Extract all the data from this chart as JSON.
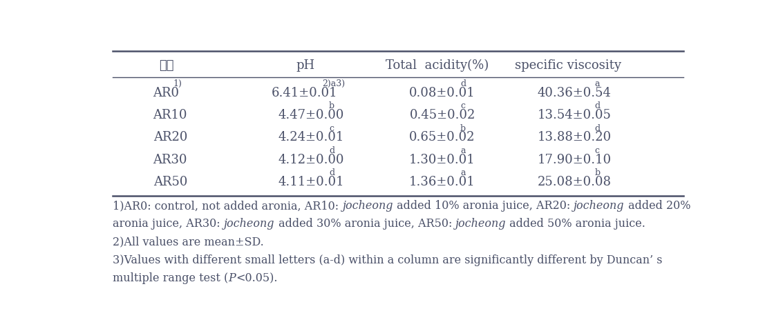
{
  "headers": [
    "시료",
    "pH",
    "Total  acidity(%)",
    "specific viscosity"
  ],
  "rows": [
    {
      "sample": "AR0",
      "sample_sup": "1)",
      "ph": "6.41±0.01",
      "ph_sup": "2)a3)",
      "acidity": "0.08±0.01",
      "acidity_sup": "d",
      "viscosity": "40.36±0.54",
      "viscosity_sup": "a"
    },
    {
      "sample": "AR10",
      "sample_sup": "",
      "ph": "4.47±0.00",
      "ph_sup": "b",
      "acidity": "0.45±0.02",
      "acidity_sup": "c",
      "viscosity": "13.54±0.05",
      "viscosity_sup": "d"
    },
    {
      "sample": "AR20",
      "sample_sup": "",
      "ph": "4.24±0.01",
      "ph_sup": "c",
      "acidity": "0.65±0.02",
      "acidity_sup": "b",
      "viscosity": "13.88±0.20",
      "viscosity_sup": "d"
    },
    {
      "sample": "AR30",
      "sample_sup": "",
      "ph": "4.12±0.00",
      "ph_sup": "d",
      "acidity": "1.30±0.01",
      "acidity_sup": "a",
      "viscosity": "17.90±0.10",
      "viscosity_sup": "c"
    },
    {
      "sample": "AR50",
      "sample_sup": "",
      "ph": "4.11±0.01",
      "ph_sup": "d",
      "acidity": "1.36±0.01",
      "acidity_sup": "a",
      "viscosity": "25.08±0.08",
      "viscosity_sup": "b"
    }
  ],
  "footnotes": [
    [
      "1)AR0: control, not added aronia, AR10: ",
      "italic",
      "jocheong",
      " added 10% aronia juice, AR20: ",
      "italic",
      "jocheong",
      " added 20%"
    ],
    [
      "aronia juice, AR30: ",
      "italic",
      "jocheong",
      " added 30% aronia juice, AR50: ",
      "italic",
      "jocheong",
      " added 50% aronia juice."
    ],
    [
      "2)All values are mean±SD."
    ],
    [
      "3)Values with different small letters (a-d) within a column are significantly different by Duncan’ s"
    ],
    [
      "multiple range test (",
      "italic",
      "P",
      "<0.05)."
    ]
  ],
  "text_color": "#4a5068",
  "bg_color": "#ffffff",
  "line_color": "#4a5068",
  "font_size_header": 13,
  "font_size_data": 13,
  "font_size_footnote": 11.5,
  "font_size_sup": 9
}
